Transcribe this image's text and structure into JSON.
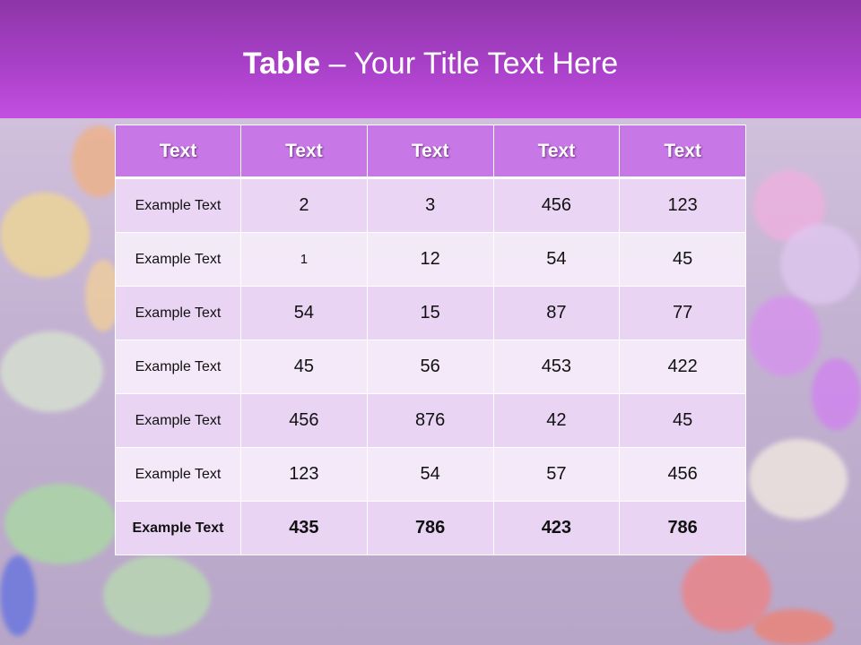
{
  "title": {
    "bold": "Table",
    "rest": " – Your Title Text Here"
  },
  "table": {
    "headers": [
      "Text",
      "Text",
      "Text",
      "Text",
      "Text"
    ],
    "rows": [
      [
        "Example Text",
        "2",
        "3",
        "456",
        "123"
      ],
      [
        "Example Text",
        "1",
        "12",
        "54",
        "45"
      ],
      [
        "Example Text",
        "54",
        "15",
        "87",
        "77"
      ],
      [
        "Example Text",
        "45",
        "56",
        "453",
        "422"
      ],
      [
        "Example Text",
        "456",
        "876",
        "42",
        "45"
      ],
      [
        "Example Text",
        "123",
        "54",
        "57",
        "456"
      ],
      [
        "Example Text",
        "435",
        "786",
        "423",
        "786"
      ]
    ]
  },
  "colors": {
    "header": "#c878e6",
    "band": "#a940c8"
  }
}
